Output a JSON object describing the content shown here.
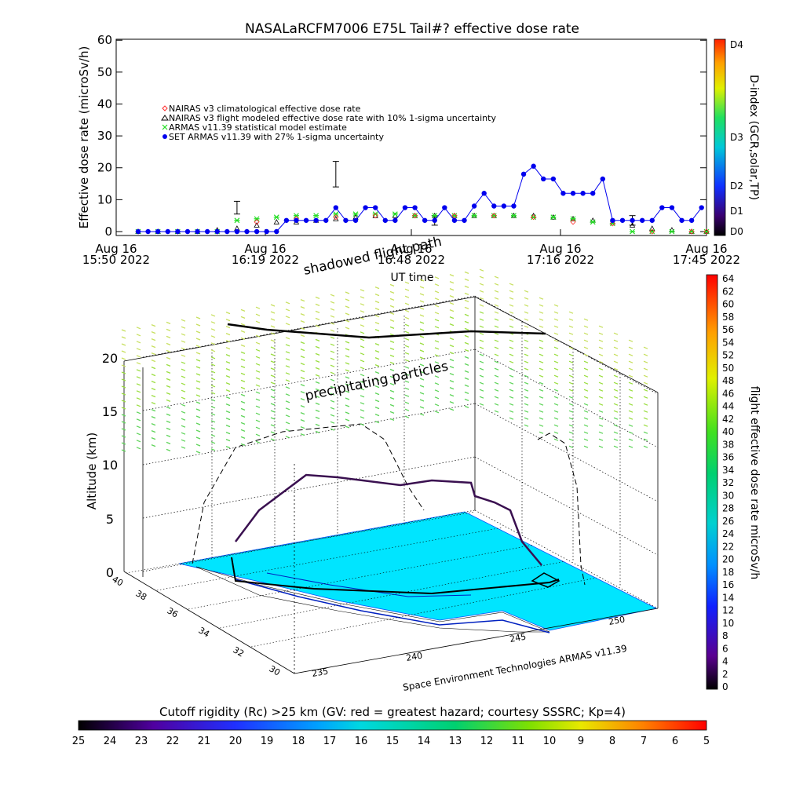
{
  "title": "NASALaRCFM7006  E75L Tail#? effective dose rate",
  "chart_data": [
    {
      "type": "scatter",
      "ylabel": "Effective dose rate (microSv/h)",
      "xlabel": "UT time",
      "ylim": [
        0,
        60
      ],
      "yticks": [
        "0",
        "10",
        "20",
        "30",
        "40",
        "50",
        "60"
      ],
      "xtick_labels": [
        {
          "line1": "Aug 16",
          "line2": "15:50 2022"
        },
        {
          "line1": "Aug 16",
          "line2": "16:19 2022"
        },
        {
          "line1": "Aug 16",
          "line2": "16:48 2022"
        },
        {
          "line1": "Aug 16",
          "line2": "17:16 2022"
        },
        {
          "line1": "Aug 16",
          "line2": "17:45 2022"
        }
      ],
      "x_minutes": [
        0,
        4,
        8,
        12,
        16,
        20,
        24,
        28,
        32,
        36,
        40,
        44,
        48,
        52,
        56,
        60,
        64,
        68,
        72,
        76,
        80,
        84,
        88,
        92,
        96,
        100,
        104,
        108,
        112,
        115
      ],
      "legend": [
        {
          "label": "NAIRAS v3 climatological effective dose rate",
          "color": "#ff3030"
        },
        {
          "label": "NAIRAS v3 flight modeled effective dose rate with 10% 1-sigma uncertainty",
          "color": "#000000"
        },
        {
          "label": "ARMAS v11.39 statistical model estimate",
          "color": "#22dd22"
        },
        {
          "label": "SET ARMAS v11.39 with 27% 1-sigma uncertainty",
          "color": "#0000ee"
        }
      ],
      "series": [
        {
          "key": "set_armas",
          "color": "#0000ee",
          "x": [
            0,
            2,
            4,
            6,
            8,
            10,
            12,
            14,
            16,
            18,
            20,
            22,
            24,
            26,
            28,
            30,
            32,
            34,
            36,
            38,
            40,
            42,
            44,
            46,
            48,
            50,
            52,
            54,
            56,
            58,
            60,
            62,
            64,
            66,
            68,
            70,
            72,
            74,
            76,
            78,
            80,
            82,
            84,
            86,
            88,
            90,
            92,
            94,
            96,
            98,
            100,
            102,
            104,
            106,
            108,
            110,
            112,
            114
          ],
          "y": [
            0,
            0,
            0,
            0,
            0,
            0,
            0,
            0,
            0,
            0,
            0,
            0,
            0,
            0,
            0,
            3.5,
            3.5,
            3.5,
            3.5,
            3.5,
            7.5,
            3.5,
            3.5,
            7.5,
            7.5,
            3.5,
            3.5,
            7.5,
            7.5,
            3.5,
            3.5,
            7.5,
            3.5,
            3.5,
            8,
            12,
            8,
            8,
            8,
            18,
            20.5,
            16.5,
            16.5,
            12,
            12,
            12,
            12,
            16.5,
            3.5,
            3.5,
            3.5,
            3.5,
            3.5,
            7.5,
            7.5,
            3.5,
            3.5,
            7.5
          ]
        },
        {
          "key": "nairas_flight",
          "color": "#000000",
          "x": [
            0,
            4,
            8,
            12,
            16,
            20,
            24,
            28,
            32,
            36,
            40,
            44,
            48,
            52,
            56,
            60,
            64,
            68,
            72,
            76,
            80,
            84,
            88,
            92,
            96,
            100,
            104,
            108,
            112,
            115
          ],
          "y": [
            0,
            0,
            0,
            0,
            0.5,
            1,
            2,
            3,
            3,
            3.5,
            4,
            4.5,
            5,
            5,
            5,
            5,
            5,
            5,
            5,
            5,
            5,
            4.5,
            4,
            3.5,
            3,
            2,
            1,
            0.5,
            0,
            0
          ]
        },
        {
          "key": "armas_stat",
          "color": "#22dd22",
          "x": [
            0,
            4,
            8,
            12,
            16,
            20,
            24,
            28,
            32,
            36,
            40,
            44,
            48,
            52,
            56,
            60,
            64,
            68,
            72,
            76,
            80,
            84,
            88,
            92,
            96,
            100,
            104,
            108,
            112,
            115
          ],
          "y": [
            0,
            0,
            0,
            0,
            0,
            3.5,
            4,
            4.5,
            5,
            5,
            5.5,
            5.5,
            5.5,
            5.5,
            5,
            5,
            5,
            5,
            5,
            5,
            4.5,
            4.5,
            4,
            3,
            2.5,
            0,
            0,
            0,
            0,
            0
          ]
        },
        {
          "key": "nairas_clim",
          "color": "#ff3030",
          "x": [
            0,
            8,
            16,
            24,
            32,
            40,
            48,
            56,
            64,
            72,
            80,
            88,
            96,
            104,
            112,
            115
          ],
          "y": [
            0,
            0,
            0,
            3,
            4,
            4.5,
            5,
            5,
            5,
            5,
            4.5,
            3,
            2.5,
            0,
            0,
            0
          ]
        }
      ]
    },
    {
      "type": "colorbar",
      "label": "D-index (GCR,solar,TP)",
      "ticks": [
        "D4",
        "D3",
        "D2",
        "D1",
        "D0"
      ]
    },
    {
      "type": "colorbar",
      "label": "flight effective dose rate microSv/h",
      "ticks": [
        "64",
        "62",
        "60",
        "58",
        "56",
        "54",
        "52",
        "50",
        "48",
        "46",
        "44",
        "42",
        "40",
        "38",
        "36",
        "34",
        "32",
        "30",
        "28",
        "26",
        "24",
        "22",
        "20",
        "18",
        "16",
        "14",
        "12",
        "10",
        "8",
        "6",
        "4",
        "2",
        "0"
      ]
    },
    {
      "type": "3d-scatter",
      "zlabel": "Altitude (km)",
      "zticks": [
        "0",
        "5",
        "10",
        "15",
        "20"
      ],
      "lat_ticks": [
        "40",
        "38",
        "36",
        "34",
        "32",
        "30"
      ],
      "lon_ticks": [
        "235",
        "240",
        "245",
        "250"
      ],
      "annotations": [
        "shadowed flight path",
        "precipitating particles"
      ],
      "credit": "Space Environment Technologies ARMAS v11.39"
    },
    {
      "type": "colorbar",
      "label": "Cutoff rigidity (Rc) >25 km (GV: red = greatest hazard; courtesy SSSRC; Kp=4)",
      "ticks": [
        "25",
        "24",
        "23",
        "22",
        "21",
        "20",
        "19",
        "18",
        "17",
        "16",
        "15",
        "14",
        "13",
        "12",
        "11",
        "10",
        "9",
        "8",
        "7",
        "6",
        "5"
      ]
    }
  ]
}
